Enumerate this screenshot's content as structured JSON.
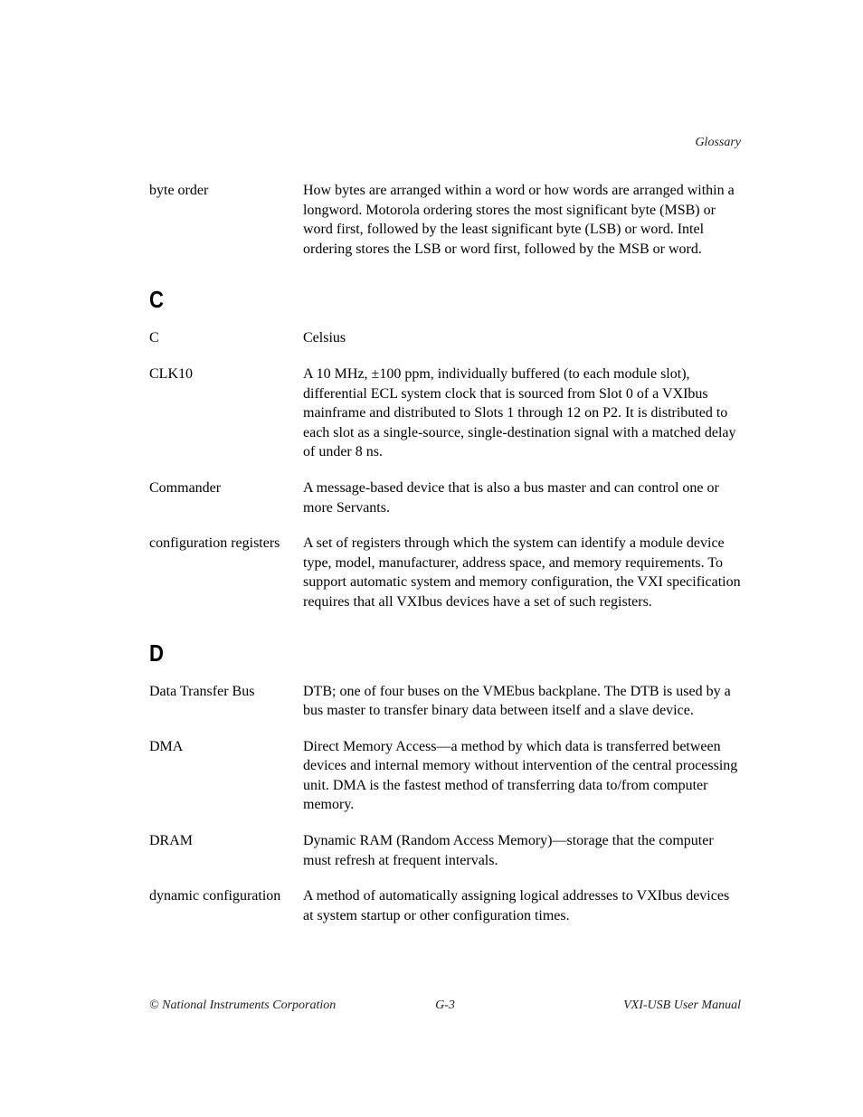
{
  "header": {
    "section_label": "Glossary"
  },
  "sections": [
    {
      "letter": null,
      "entries": [
        {
          "term": "byte order",
          "definition": "How bytes are arranged within a word or how words are arranged within a longword. Motorola ordering stores the most significant byte (MSB) or word first, followed by the least significant byte (LSB) or word. Intel ordering stores the LSB or word first, followed by the MSB or word."
        }
      ]
    },
    {
      "letter": "C",
      "entries": [
        {
          "term": "C",
          "definition": "Celsius"
        },
        {
          "term": "CLK10",
          "definition": "A 10 MHz, ±100 ppm, individually buffered (to each module slot), differential ECL system clock that is sourced from Slot 0 of a VXIbus mainframe and distributed to Slots 1 through 12 on P2. It is distributed to each slot as a single-source, single-destination signal with a matched delay of under 8 ns."
        },
        {
          "term": "Commander",
          "definition": "A message-based device that is also a bus master and can control one or more Servants."
        },
        {
          "term": "configuration registers",
          "definition": "A set of registers through which the system can identify a module device type, model, manufacturer, address space, and memory requirements. To support automatic system and memory configuration, the VXI specification requires that all VXIbus devices have a set of such registers."
        }
      ]
    },
    {
      "letter": "D",
      "entries": [
        {
          "term": "Data Transfer Bus",
          "definition": "DTB; one of four buses on the VMEbus backplane. The DTB is used by a bus master to transfer binary data between itself and a slave device."
        },
        {
          "term": "DMA",
          "definition": "Direct Memory Access—a method by which data is transferred between devices and internal memory without intervention of the central processing unit. DMA is the fastest method of transferring data to/from computer memory."
        },
        {
          "term": "DRAM",
          "definition": "Dynamic RAM (Random Access Memory)—storage that the computer must refresh at frequent intervals."
        },
        {
          "term": "dynamic configuration",
          "definition": "A method of automatically assigning logical addresses to VXIbus devices at system startup or other configuration times."
        }
      ]
    }
  ],
  "footer": {
    "left": "© National Instruments Corporation",
    "center": "G-3",
    "right": "VXI-USB User Manual"
  }
}
